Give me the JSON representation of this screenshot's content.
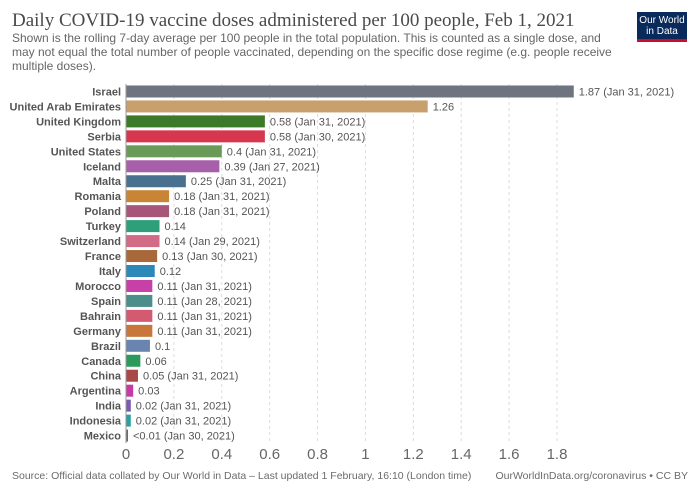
{
  "title": "Daily COVID-19 vaccine doses administered per 100 people, Feb 1, 2021",
  "subtitle": "Shown is the rolling 7-day average per 100 people in the total population. This is counted as a single dose, and may not equal the total number of people vaccinated, depending on the specific dose regime (e.g. people receive multiple doses).",
  "logo": {
    "line1": "Our World",
    "line2": "in Data"
  },
  "footer": {
    "source": "Source: Official data collated by Our World in Data – Last updated 1 February, 16:10 (London time)",
    "credit": "OurWorldInData.org/coronavirus • CC BY"
  },
  "chart_data": {
    "type": "bar",
    "orientation": "horizontal",
    "categories": [
      "Israel",
      "United Arab Emirates",
      "United Kingdom",
      "Serbia",
      "United States",
      "Iceland",
      "Malta",
      "Romania",
      "Poland",
      "Turkey",
      "Switzerland",
      "France",
      "Italy",
      "Morocco",
      "Spain",
      "Bahrain",
      "Germany",
      "Brazil",
      "Canada",
      "China",
      "Argentina",
      "India",
      "Indonesia",
      "Mexico"
    ],
    "values": [
      1.87,
      1.26,
      0.58,
      0.58,
      0.4,
      0.39,
      0.25,
      0.18,
      0.18,
      0.14,
      0.14,
      0.13,
      0.12,
      0.11,
      0.11,
      0.11,
      0.11,
      0.1,
      0.06,
      0.05,
      0.03,
      0.02,
      0.02,
      0.005
    ],
    "labels": [
      "1.87 (Jan 31, 2021)",
      "1.26",
      "0.58 (Jan 31, 2021)",
      "0.58 (Jan 30, 2021)",
      "0.4 (Jan 31, 2021)",
      "0.39 (Jan 27, 2021)",
      "0.25 (Jan 31, 2021)",
      "0.18 (Jan 31, 2021)",
      "0.18 (Jan 31, 2021)",
      "0.14",
      "0.14 (Jan 29, 2021)",
      "0.13 (Jan 30, 2021)",
      "0.12",
      "0.11 (Jan 31, 2021)",
      "0.11 (Jan 28, 2021)",
      "0.11 (Jan 31, 2021)",
      "0.11 (Jan 31, 2021)",
      "0.1",
      "0.06",
      "0.05 (Jan 31, 2021)",
      "0.03",
      "0.02 (Jan 31, 2021)",
      "0.02 (Jan 31, 2021)",
      "<0.01 (Jan 30, 2021)"
    ],
    "colors": [
      "#6e7581",
      "#c8a06e",
      "#3c7a2a",
      "#d6374e",
      "#6a9a58",
      "#a65fa8",
      "#4a7090",
      "#c88536",
      "#a8557a",
      "#2e9f7a",
      "#d26b86",
      "#a8683a",
      "#2b88b8",
      "#c640a8",
      "#4b8e8a",
      "#d45a72",
      "#c8763a",
      "#6a84b0",
      "#2b9a5a",
      "#a84848",
      "#c63aa2",
      "#7a5ab0",
      "#2aa0a0",
      "#6a6a6a"
    ],
    "xlim": [
      0,
      1.8
    ],
    "xticks": [
      0,
      0.2,
      0.4,
      0.6,
      0.8,
      1,
      1.2,
      1.4,
      1.6,
      1.8
    ],
    "grid": true
  }
}
